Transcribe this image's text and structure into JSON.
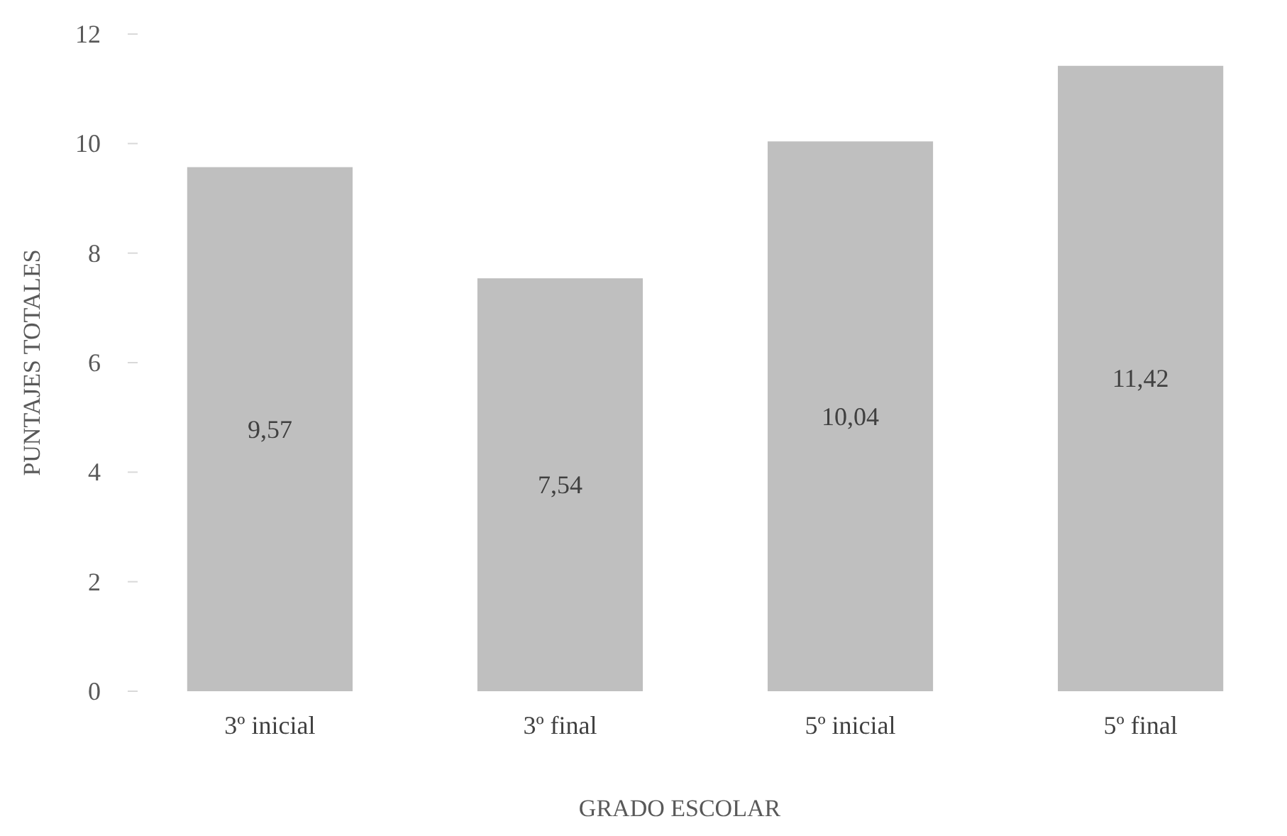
{
  "chart_data": {
    "type": "bar",
    "xlabel": "GRADO ESCOLAR",
    "ylabel": "PUNTAJES TOTALES",
    "categories": [
      "3º inicial",
      "3º final",
      "5º inicial",
      "5º final"
    ],
    "values": [
      9.57,
      7.54,
      10.04,
      11.42
    ],
    "value_labels": [
      "9,57",
      "7,54",
      "10,04",
      "11,42"
    ],
    "color": "#bfbfbf",
    "ylim": [
      0,
      12
    ],
    "yticks": [
      0,
      2,
      4,
      6,
      8,
      10,
      12
    ],
    "grid": false
  }
}
